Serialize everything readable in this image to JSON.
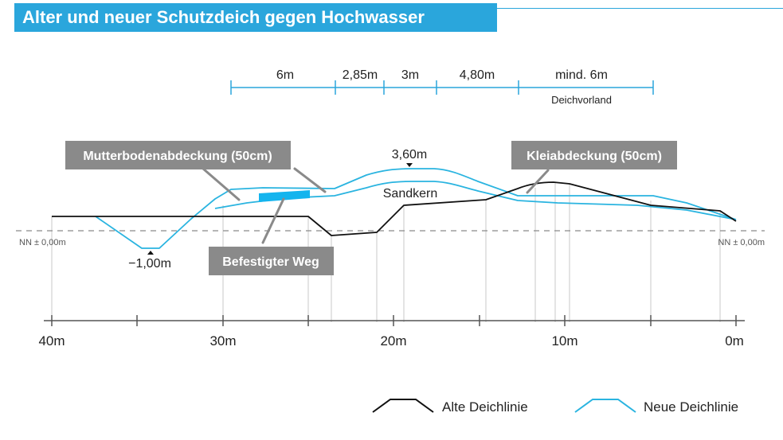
{
  "title": "Alter und neuer Schutzdeich gegen Hochwasser",
  "colors": {
    "accent": "#2aa6dc",
    "new_line": "#2ab4e0",
    "old_line": "#111111",
    "label_box": "#8a8a8a",
    "road": "#14b4ee"
  },
  "dimension_bar": {
    "segments": [
      "6m",
      "2,85m",
      "3m",
      "4,80m",
      "mind. 6m"
    ],
    "sub_label": "Deichvorland"
  },
  "labels": {
    "crest_height": "3,60m",
    "core": "Sandkern",
    "trench_depth": "−1,00m",
    "reference_left": "NN ± 0,00m",
    "reference_right": "NN ± 0,00m"
  },
  "callouts": {
    "topsoil": "Mutterbodenabdeckung (50cm)",
    "clay": "Kleiabdeckung (50cm)",
    "road": "Befestigter Weg"
  },
  "axis": {
    "ticks": [
      "40m",
      "30m",
      "20m",
      "10m",
      "0m"
    ]
  },
  "legend": {
    "old": "Alte Deichlinie",
    "new": "Neue Deichlinie"
  }
}
